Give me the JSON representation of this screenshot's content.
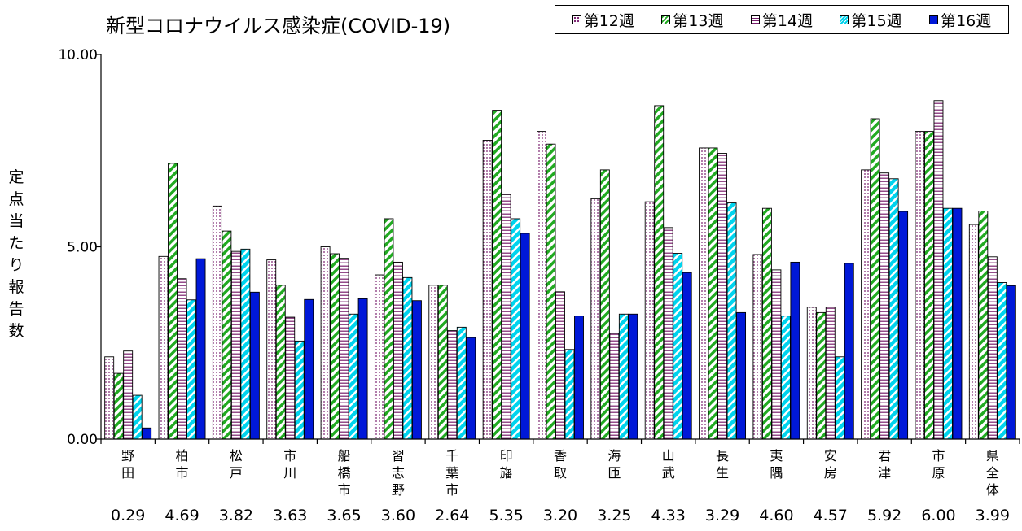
{
  "chart_data": {
    "type": "bar",
    "title": "新型コロナウイルス感染症(COVID-19)",
    "ylabel": "定点当たり報告数",
    "xlabel": "",
    "ylim": [
      0,
      10
    ],
    "yticks": [
      "0.00",
      "5.00",
      "10.00"
    ],
    "grid": false,
    "legend_position": "top-right",
    "categories": [
      "野田",
      "柏市",
      "松戸",
      "市川",
      "船橋市",
      "習志野",
      "千葉市",
      "印旛",
      "香取",
      "海匝",
      "山武",
      "長生",
      "夷隅",
      "安房",
      "君津",
      "市原",
      "県全体"
    ],
    "series": [
      {
        "name": "第12週",
        "color": "#ffffff",
        "dot_color": "#7a1f6e",
        "values": [
          2.14,
          4.75,
          6.06,
          4.66,
          5.0,
          4.27,
          4.0,
          7.77,
          8.0,
          6.25,
          6.17,
          7.57,
          4.8,
          3.43,
          7.0,
          8.0,
          5.58
        ]
      },
      {
        "name": "第13週",
        "color": "#22aa22",
        "values": [
          1.71,
          7.17,
          5.41,
          4.0,
          4.82,
          5.73,
          4.0,
          8.55,
          7.67,
          7.0,
          8.67,
          7.57,
          6.0,
          3.29,
          8.33,
          8.0,
          5.93
        ]
      },
      {
        "name": "第14週",
        "color": "#ffffff",
        "stripe_color": "#7a1f6e",
        "values": [
          2.29,
          4.17,
          4.88,
          3.17,
          4.7,
          4.6,
          2.82,
          6.36,
          3.83,
          2.75,
          5.5,
          7.43,
          4.4,
          3.43,
          6.92,
          8.8,
          4.74
        ]
      },
      {
        "name": "第15週",
        "color": "#00d4ee",
        "values": [
          1.14,
          3.62,
          4.94,
          2.55,
          3.25,
          4.2,
          2.91,
          5.73,
          2.33,
          3.25,
          4.83,
          6.14,
          3.2,
          2.14,
          6.77,
          6.0,
          4.07
        ]
      },
      {
        "name": "第16週",
        "color": "#0018d8",
        "values": [
          0.29,
          4.69,
          3.82,
          3.63,
          3.65,
          3.6,
          2.64,
          5.35,
          3.2,
          3.25,
          4.33,
          3.29,
          4.6,
          4.57,
          5.92,
          6.0,
          3.99
        ]
      }
    ],
    "data_table": {
      "series": "第16週",
      "values": [
        "0.29",
        "4.69",
        "3.82",
        "3.63",
        "3.65",
        "3.60",
        "2.64",
        "5.35",
        "3.20",
        "3.25",
        "4.33",
        "3.29",
        "4.60",
        "4.57",
        "5.92",
        "6.00",
        "3.99"
      ]
    }
  }
}
